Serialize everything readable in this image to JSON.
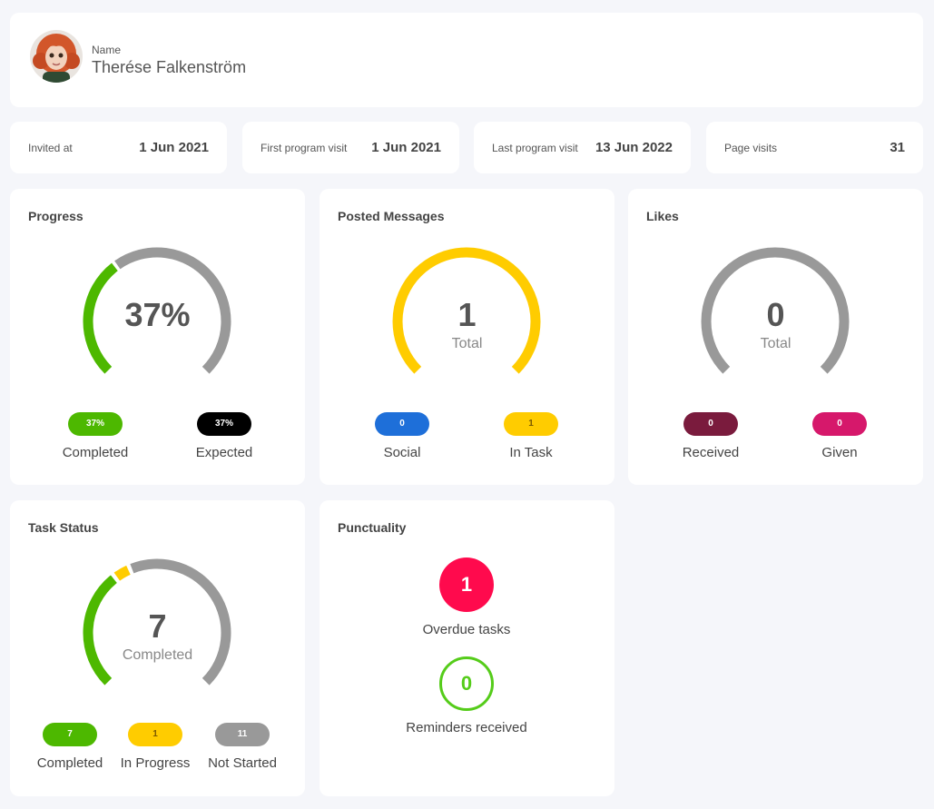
{
  "profile": {
    "name_label": "Name",
    "name": "Therése Falkenström"
  },
  "stats": [
    {
      "label": "Invited at",
      "value": "1 Jun 2021"
    },
    {
      "label": "First program visit",
      "value": "1 Jun 2021"
    },
    {
      "label": "Last program visit",
      "value": "13 Jun 2022"
    },
    {
      "label": "Page visits",
      "value": "31"
    }
  ],
  "progress": {
    "title": "Progress",
    "value_label": "37%",
    "percent": 37,
    "completed": {
      "value": "37%",
      "label": "Completed"
    },
    "expected": {
      "value": "37%",
      "label": "Expected"
    }
  },
  "messages": {
    "title": "Posted Messages",
    "total": "1",
    "total_label": "Total",
    "social": {
      "value": "0",
      "label": "Social"
    },
    "in_task": {
      "value": "1",
      "label": "In Task"
    }
  },
  "likes": {
    "title": "Likes",
    "total": "0",
    "total_label": "Total",
    "received": {
      "value": "0",
      "label": "Received"
    },
    "given": {
      "value": "0",
      "label": "Given"
    }
  },
  "tasks": {
    "title": "Task Status",
    "total": "7",
    "total_label": "Completed",
    "completed": {
      "value": "7",
      "label": "Completed"
    },
    "in_progress": {
      "value": "1",
      "label": "In Progress"
    },
    "not_started": {
      "value": "11",
      "label": "Not Started"
    }
  },
  "punctuality": {
    "title": "Punctuality",
    "overdue": {
      "value": "1",
      "label": "Overdue tasks"
    },
    "reminders": {
      "value": "0",
      "label": "Reminders received"
    }
  },
  "colors": {
    "green": "#4db800",
    "gray": "#999999",
    "yellow": "#ffcc00",
    "blue": "#1e6fd9",
    "maroon": "#7a1b3d",
    "pink": "#d6186b",
    "red": "#ff0a4d",
    "black": "#000000"
  }
}
